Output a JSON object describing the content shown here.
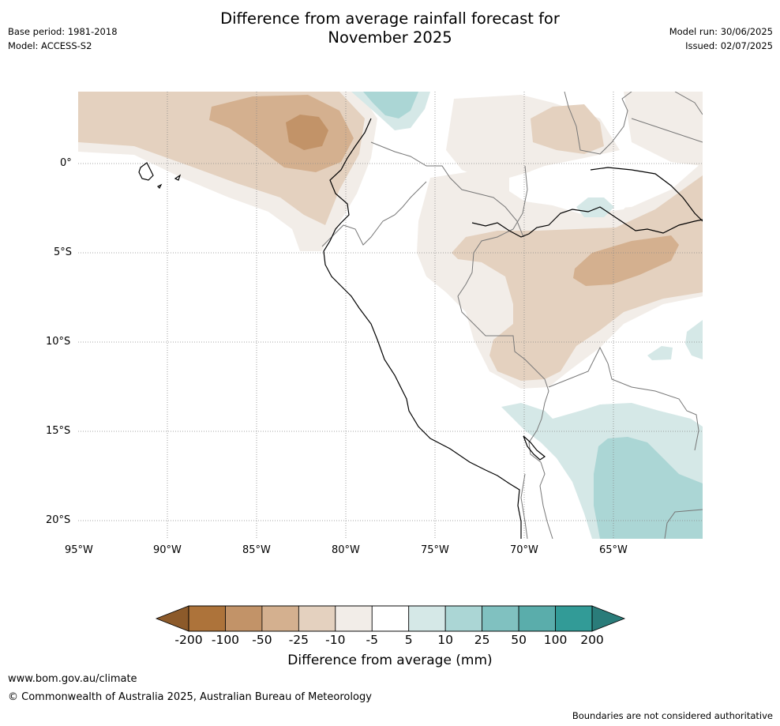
{
  "title_line1": "Difference from average rainfall forecast for",
  "title_line2": "November 2025",
  "meta": {
    "base_period": "Base period: 1981-2018",
    "model": "Model: ACCESS-S2",
    "model_run": "Model run: 30/06/2025",
    "issued": "Issued: 02/07/2025"
  },
  "axes": {
    "lat_labels": [
      "0°",
      "5°S",
      "10°S",
      "15°S",
      "20°S"
    ],
    "lon_labels": [
      "95°W",
      "90°W",
      "85°W",
      "80°W",
      "75°W",
      "70°W",
      "65°W"
    ]
  },
  "colorbar": {
    "title": "Difference from average (mm)",
    "tick_labels": [
      "-200",
      "-100",
      "-50",
      "-25",
      "-10",
      "-5",
      "5",
      "10",
      "25",
      "50",
      "100",
      "200"
    ],
    "colors": [
      "#8c5a2a",
      "#ad733a",
      "#c29368",
      "#d4b08f",
      "#e4d1bf",
      "#f2ede8",
      "#ffffff",
      "#d5e8e7",
      "#abd6d5",
      "#80c1c0",
      "#5aadab",
      "#329b97",
      "#2a7c7a"
    ]
  },
  "footer": {
    "url": "www.bom.gov.au/climate",
    "copyright": "© Commonwealth of Australia 2025, Australian Bureau of Meteorology",
    "boundary_note": "Boundaries are not considered authoritative"
  }
}
